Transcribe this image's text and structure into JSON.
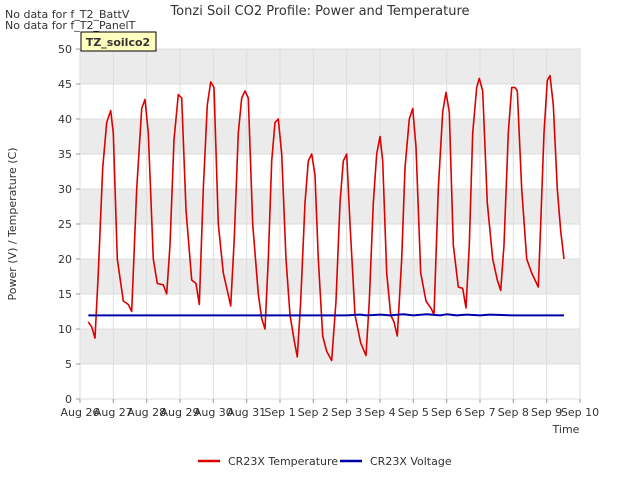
{
  "notes": [
    "No data for f_T2_BattV",
    "No data for f_T2_PanelT"
  ],
  "site_label": "TZ_soilco2",
  "colors": {
    "temperature": "#dd0000",
    "voltage": "#0000aa",
    "band": "#ebebeb",
    "site_box": "#ffffc0",
    "site_text": "#aa0000"
  },
  "chart_data": {
    "type": "line",
    "title": "Tonzi Soil CO2 Profile: Power and Temperature",
    "xlabel": "Time",
    "ylabel": "Power (V) / Temperature (C)",
    "ylim": [
      0,
      50
    ],
    "yticks": [
      0,
      5,
      10,
      15,
      20,
      25,
      30,
      35,
      40,
      45,
      50
    ],
    "xlim": [
      0,
      15
    ],
    "xticks": [
      {
        "v": 0,
        "label": "Aug 26"
      },
      {
        "v": 1,
        "label": "Aug 27"
      },
      {
        "v": 2,
        "label": "Aug 28"
      },
      {
        "v": 3,
        "label": "Aug 29"
      },
      {
        "v": 4,
        "label": "Aug 30"
      },
      {
        "v": 5,
        "label": "Aug 31"
      },
      {
        "v": 6,
        "label": "Sep 1"
      },
      {
        "v": 7,
        "label": "Sep 2"
      },
      {
        "v": 8,
        "label": "Sep 3"
      },
      {
        "v": 9,
        "label": "Sep 4"
      },
      {
        "v": 10,
        "label": "Sep 5"
      },
      {
        "v": 11,
        "label": "Sep 6"
      },
      {
        "v": 12,
        "label": "Sep 7"
      },
      {
        "v": 13,
        "label": "Sep 8"
      },
      {
        "v": 14,
        "label": "Sep 9"
      },
      {
        "v": 15,
        "label": "Sep 10"
      }
    ],
    "legend_position": "bottom-center",
    "series": [
      {
        "name": "CR23X Temperature",
        "color": "#dd0000",
        "points": [
          [
            0.25,
            11.0
          ],
          [
            0.35,
            10.3
          ],
          [
            0.45,
            8.7
          ],
          [
            0.55,
            18.0
          ],
          [
            0.68,
            33.0
          ],
          [
            0.8,
            39.5
          ],
          [
            0.92,
            41.2
          ],
          [
            1.0,
            38.0
          ],
          [
            1.12,
            20.0
          ],
          [
            1.3,
            14.0
          ],
          [
            1.45,
            13.5
          ],
          [
            1.55,
            12.5
          ],
          [
            1.7,
            30.0
          ],
          [
            1.85,
            41.5
          ],
          [
            1.95,
            42.8
          ],
          [
            2.05,
            38.0
          ],
          [
            2.2,
            20.0
          ],
          [
            2.32,
            16.5
          ],
          [
            2.5,
            16.3
          ],
          [
            2.6,
            15.0
          ],
          [
            2.7,
            22.0
          ],
          [
            2.82,
            37.0
          ],
          [
            2.95,
            43.5
          ],
          [
            3.05,
            43.0
          ],
          [
            3.18,
            27.0
          ],
          [
            3.35,
            17.0
          ],
          [
            3.48,
            16.5
          ],
          [
            3.58,
            13.5
          ],
          [
            3.7,
            30.0
          ],
          [
            3.82,
            42.0
          ],
          [
            3.92,
            45.3
          ],
          [
            4.02,
            44.5
          ],
          [
            4.15,
            25.0
          ],
          [
            4.3,
            18.0
          ],
          [
            4.42,
            15.5
          ],
          [
            4.52,
            13.3
          ],
          [
            4.63,
            23.0
          ],
          [
            4.75,
            38.0
          ],
          [
            4.85,
            43.0
          ],
          [
            4.95,
            44.0
          ],
          [
            5.05,
            43.0
          ],
          [
            5.18,
            25.0
          ],
          [
            5.35,
            15.0
          ],
          [
            5.45,
            11.5
          ],
          [
            5.55,
            10.0
          ],
          [
            5.65,
            20.0
          ],
          [
            5.75,
            34.0
          ],
          [
            5.85,
            39.5
          ],
          [
            5.95,
            40.0
          ],
          [
            6.05,
            35.0
          ],
          [
            6.18,
            20.0
          ],
          [
            6.3,
            12.0
          ],
          [
            6.42,
            8.5
          ],
          [
            6.52,
            6.0
          ],
          [
            6.62,
            14.0
          ],
          [
            6.75,
            28.0
          ],
          [
            6.85,
            34.0
          ],
          [
            6.95,
            35.0
          ],
          [
            7.05,
            32.0
          ],
          [
            7.15,
            20.0
          ],
          [
            7.28,
            9.0
          ],
          [
            7.4,
            6.8
          ],
          [
            7.55,
            5.5
          ],
          [
            7.68,
            14.0
          ],
          [
            7.8,
            28.0
          ],
          [
            7.9,
            34.0
          ],
          [
            8.0,
            35.0
          ],
          [
            8.1,
            25.0
          ],
          [
            8.25,
            12.0
          ],
          [
            8.42,
            8.0
          ],
          [
            8.58,
            6.2
          ],
          [
            8.68,
            14.0
          ],
          [
            8.8,
            28.0
          ],
          [
            8.9,
            35.0
          ],
          [
            9.0,
            37.5
          ],
          [
            9.08,
            34.0
          ],
          [
            9.2,
            18.0
          ],
          [
            9.32,
            12.0
          ],
          [
            9.42,
            11.0
          ],
          [
            9.52,
            9.0
          ],
          [
            9.65,
            20.0
          ],
          [
            9.75,
            33.0
          ],
          [
            9.88,
            40.0
          ],
          [
            9.98,
            41.5
          ],
          [
            10.08,
            36.0
          ],
          [
            10.22,
            18.0
          ],
          [
            10.38,
            14.0
          ],
          [
            10.55,
            12.8
          ],
          [
            10.62,
            12.0
          ],
          [
            10.75,
            30.0
          ],
          [
            10.88,
            41.0
          ],
          [
            10.98,
            43.8
          ],
          [
            11.08,
            41.0
          ],
          [
            11.2,
            22.0
          ],
          [
            11.35,
            16.0
          ],
          [
            11.48,
            15.8
          ],
          [
            11.58,
            13.0
          ],
          [
            11.68,
            22.0
          ],
          [
            11.78,
            38.0
          ],
          [
            11.9,
            44.5
          ],
          [
            11.98,
            45.8
          ],
          [
            12.08,
            44.0
          ],
          [
            12.22,
            28.0
          ],
          [
            12.38,
            20.0
          ],
          [
            12.52,
            17.0
          ],
          [
            12.62,
            15.5
          ],
          [
            12.72,
            22.0
          ],
          [
            12.85,
            38.0
          ],
          [
            12.95,
            44.5
          ],
          [
            13.05,
            44.5
          ],
          [
            13.12,
            44.0
          ],
          [
            13.25,
            30.0
          ],
          [
            13.4,
            20.0
          ],
          [
            13.55,
            18.0
          ],
          [
            13.65,
            17.0
          ],
          [
            13.75,
            16.0
          ],
          [
            13.82,
            25.0
          ],
          [
            13.92,
            38.0
          ],
          [
            14.02,
            45.5
          ],
          [
            14.1,
            46.2
          ],
          [
            14.2,
            42.0
          ],
          [
            14.32,
            30.0
          ],
          [
            14.42,
            24.0
          ],
          [
            14.52,
            20.0
          ]
        ]
      },
      {
        "name": "CR23X Voltage",
        "color": "#0000aa",
        "points": [
          [
            0.25,
            11.95
          ],
          [
            1.0,
            11.95
          ],
          [
            2.0,
            11.95
          ],
          [
            3.0,
            11.95
          ],
          [
            4.0,
            11.95
          ],
          [
            5.0,
            11.95
          ],
          [
            6.0,
            11.95
          ],
          [
            7.0,
            11.95
          ],
          [
            8.0,
            11.95
          ],
          [
            8.4,
            12.05
          ],
          [
            8.6,
            11.95
          ],
          [
            9.0,
            12.05
          ],
          [
            9.3,
            11.95
          ],
          [
            9.7,
            12.1
          ],
          [
            10.0,
            11.95
          ],
          [
            10.4,
            12.1
          ],
          [
            10.8,
            11.95
          ],
          [
            11.0,
            12.1
          ],
          [
            11.3,
            11.95
          ],
          [
            11.6,
            12.05
          ],
          [
            12.0,
            11.95
          ],
          [
            12.3,
            12.05
          ],
          [
            13.0,
            11.95
          ],
          [
            14.0,
            11.95
          ],
          [
            14.52,
            11.95
          ]
        ]
      }
    ]
  }
}
